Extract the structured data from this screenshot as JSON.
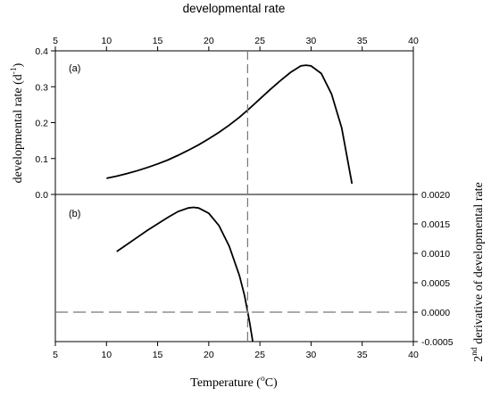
{
  "chart_data": {
    "title": "developmental rate",
    "xlabel": {
      "main": "Temperature (",
      "sup": "o",
      "unit": "C)"
    },
    "x_range": [
      5,
      40
    ],
    "x_ticks": [
      5,
      10,
      15,
      20,
      25,
      30,
      35,
      40
    ],
    "vertical_reference_line": {
      "x": 23.8,
      "style": "dashed"
    },
    "panels": [
      {
        "label": "(a)",
        "type": "line",
        "ylabel": {
          "main": "developmental rate (d",
          "sup": "-1",
          "end": ")"
        },
        "y_axis_side": "left",
        "ylim": [
          0,
          0.4
        ],
        "y_ticks": [
          "0.0",
          "0.1",
          "0.2",
          "0.3",
          "0.4"
        ],
        "series": [
          {
            "x": [
              10,
              11,
              12,
              13,
              14,
              15,
              16,
              17,
              18,
              19,
              20,
              21,
              22,
              23,
              24,
              25,
              26,
              27,
              28,
              29,
              29.5,
              30,
              31,
              32,
              33,
              34
            ],
            "y": [
              0.045,
              0.051,
              0.058,
              0.066,
              0.075,
              0.085,
              0.096,
              0.109,
              0.123,
              0.138,
              0.155,
              0.173,
              0.193,
              0.215,
              0.24,
              0.266,
              0.292,
              0.317,
              0.34,
              0.358,
              0.36,
              0.358,
              0.337,
              0.28,
              0.185,
              0.03
            ]
          }
        ]
      },
      {
        "label": "(b)",
        "type": "line",
        "ylabel": {
          "pre": "2",
          "sup": "nd",
          "main": " derivative of developmental rate"
        },
        "y_axis_side": "right",
        "ylim": [
          -0.0005,
          0.002
        ],
        "y_ticks": [
          "-0.0005",
          "0.0000",
          "0.0005",
          "0.0010",
          "0.0015",
          "0.0020"
        ],
        "horizontal_reference_line": {
          "y": 0,
          "style": "dashed"
        },
        "series": [
          {
            "x": [
              11,
              12,
              13,
              14,
              15,
              16,
              17,
              18,
              18.5,
              19,
              20,
              21,
              22,
              23,
              23.5,
              24,
              24.3
            ],
            "y": [
              0.00103,
              0.00115,
              0.00127,
              0.00139,
              0.0015,
              0.00161,
              0.00171,
              0.00177,
              0.00178,
              0.00177,
              0.00168,
              0.00147,
              0.00112,
              0.00062,
              0.00028,
              -0.00018,
              -0.0005
            ]
          }
        ]
      }
    ]
  }
}
